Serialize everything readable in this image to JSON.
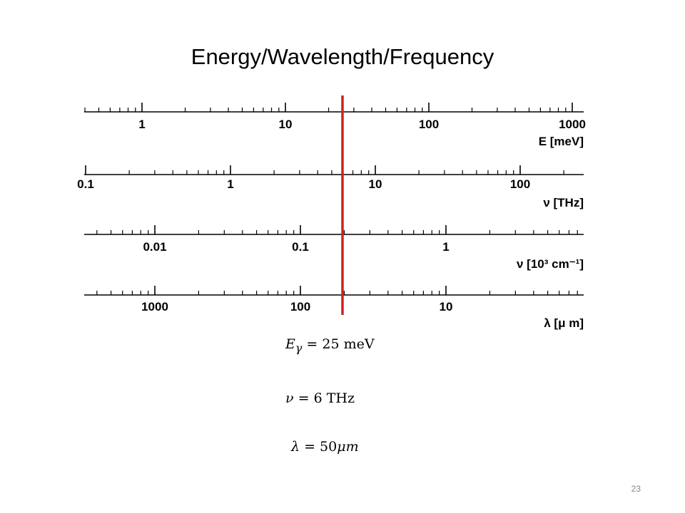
{
  "slide": {
    "title": "Energy/Wavelength/Frequency",
    "page_number": "23"
  },
  "scales": [
    {
      "name": "energy",
      "unit_label": "E [meV]",
      "direction": "ascending",
      "labeled_ticks": [
        "1",
        "10",
        "100",
        "1000"
      ],
      "major_values": [
        1,
        10,
        100,
        1000
      ]
    },
    {
      "name": "frequency-thz",
      "unit_label": "ν [THz]",
      "direction": "ascending",
      "labeled_ticks": [
        "0.1",
        "1",
        "10",
        "100"
      ],
      "major_values": [
        0.1,
        1,
        10,
        100
      ]
    },
    {
      "name": "wavenumber",
      "unit_label": "ν [10³ cm⁻¹]",
      "direction": "ascending",
      "labeled_ticks": [
        "0.01",
        "0.1",
        "1"
      ],
      "major_values": [
        0.01,
        0.1,
        1
      ]
    },
    {
      "name": "wavelength",
      "unit_label": "λ [μ m]",
      "direction": "descending",
      "labeled_ticks": [
        "1000",
        "100",
        "10"
      ],
      "major_values": [
        1000,
        100,
        10
      ]
    }
  ],
  "marker": {
    "color": "#cc2222",
    "energy_value_meV": 25
  },
  "equations": {
    "energy": {
      "symbol": "E",
      "subscript": "γ",
      "rhs": "= 25 meV"
    },
    "frequency": {
      "symbol": "ν",
      "rhs": "= 6 THz"
    },
    "wavelength": {
      "symbol": "λ",
      "rhs": "= 50",
      "unit": "μm"
    }
  }
}
